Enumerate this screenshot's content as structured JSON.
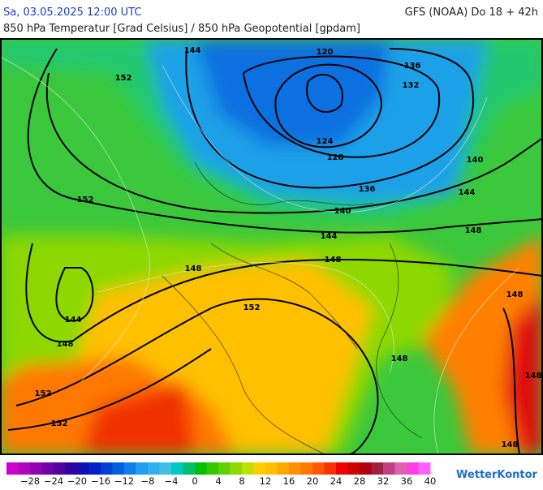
{
  "header": {
    "datetime": "Sa, 03.05.2025 12:00 UTC",
    "model": "GFS (NOAA) Do 18 + 42h",
    "subtitle": "850 hPa Temperatur [Grad Celsius] / 850 hPa Geopotential [gpdam]"
  },
  "map": {
    "contour_labels": [
      "144",
      "120",
      "136",
      "132",
      "152",
      "124",
      "128",
      "136",
      "140",
      "144",
      "152",
      "140",
      "144",
      "148",
      "148",
      "148",
      "152",
      "144",
      "148",
      "148",
      "148",
      "148",
      "152",
      "152",
      "148"
    ]
  },
  "colorbar": {
    "labels": [
      "−28",
      "−24",
      "−20",
      "−16",
      "−12",
      "−8",
      "−4",
      "0",
      "4",
      "8",
      "12",
      "16",
      "20",
      "24",
      "28",
      "32",
      "36",
      "40"
    ],
    "colors": [
      "#cc00cc",
      "#b000c0",
      "#9000b0",
      "#7000a8",
      "#5000a0",
      "#3000a0",
      "#1010b0",
      "#0020c8",
      "#0040d8",
      "#0060e0",
      "#1080e8",
      "#20a0f0",
      "#30b0f0",
      "#40c0e8",
      "#00c8c0",
      "#00c070",
      "#00c000",
      "#30c800",
      "#60d000",
      "#90d800",
      "#c0e000",
      "#ffd000",
      "#ffc000",
      "#ffa800",
      "#ff9000",
      "#ff7800",
      "#ff5800",
      "#ff3000",
      "#f00000",
      "#d00000",
      "#b00010",
      "#a02040",
      "#c04080",
      "#e060b0",
      "#ff40e0",
      "#ff60ff"
    ]
  },
  "logo": "WetterKontor"
}
